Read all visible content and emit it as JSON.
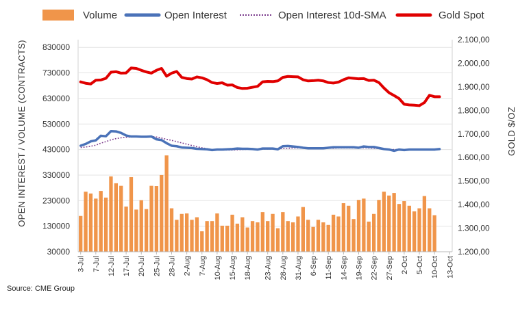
{
  "chart_data": {
    "type": "bar+line",
    "source": "Source: CME Group",
    "legend": [
      {
        "name": "Volume",
        "type": "bar",
        "color": "#f0954a"
      },
      {
        "name": "Open Interest",
        "type": "line",
        "color": "#4a72b8"
      },
      {
        "name": "Open Interest 10d-SMA",
        "type": "dotted-line",
        "color": "#7a3a8c"
      },
      {
        "name": "Gold Spot",
        "type": "line",
        "color": "#e00000"
      }
    ],
    "y_left": {
      "label": "OPEN INTEREST / VOLUME (CONTRACTS)",
      "range": [
        30000,
        860000
      ],
      "ticks": [
        "30000",
        "130000",
        "230000",
        "330000",
        "430000",
        "530000",
        "630000",
        "730000",
        "830000"
      ],
      "tick_values": [
        30000,
        130000,
        230000,
        330000,
        430000,
        530000,
        630000,
        730000,
        830000
      ]
    },
    "y_right": {
      "label": "GOLD $/OZ",
      "range": [
        1200,
        2100
      ],
      "ticks": [
        "1.200,00",
        "1.300,00",
        "1.400,00",
        "1.500,00",
        "1.600,00",
        "1.700,00",
        "1.800,00",
        "1.900,00",
        "2.000,00",
        "2.100,00"
      ],
      "tick_values": [
        1200,
        1300,
        1400,
        1500,
        1600,
        1700,
        1800,
        1900,
        2000,
        2100
      ]
    },
    "x_ticks": [
      "3-Jul",
      "7-Jul",
      "12-Jul",
      "17-Jul",
      "20-Jul",
      "25-Jul",
      "28-Jul",
      "2-Aug",
      "7-Aug",
      "10-Aug",
      "15-Aug",
      "18-Aug",
      "23-Aug",
      "28-Aug",
      "31-Aug",
      "6-Sep",
      "11-Sep",
      "14-Sep",
      "19-Sep",
      "22-Sep",
      "27-Sep",
      "2-Oct",
      "5-Oct",
      "10-Oct",
      "13-Oct"
    ],
    "n_slots": 74,
    "n_days": 72,
    "series": [
      {
        "name": "Volume",
        "values": [
          170000,
          265000,
          258000,
          238000,
          268000,
          242000,
          325000,
          298000,
          288000,
          207000,
          322000,
          195000,
          232000,
          197000,
          288000,
          287000,
          330000,
          407000,
          200000,
          155000,
          178000,
          180000,
          155000,
          165000,
          110000,
          150000,
          150000,
          180000,
          132000,
          132000,
          175000,
          140000,
          165000,
          125000,
          150000,
          145000,
          185000,
          150000,
          178000,
          122000,
          185000,
          150000,
          145000,
          168000,
          205000,
          155000,
          127000,
          155000,
          145000,
          135000,
          175000,
          168000,
          220000,
          210000,
          158000,
          233000,
          238000,
          148000,
          178000,
          233000,
          265000,
          250000,
          260000,
          217000,
          228000,
          210000,
          188000,
          200000,
          248000,
          200000,
          173000,
          0
        ]
      },
      {
        "name": "Open Interest",
        "values": [
          445000,
          452000,
          462000,
          466000,
          484000,
          482000,
          502000,
          501000,
          495000,
          485000,
          481000,
          481000,
          480000,
          480000,
          481000,
          470000,
          467000,
          455000,
          445000,
          443000,
          438000,
          437000,
          436000,
          433000,
          432000,
          431000,
          428000,
          430000,
          430000,
          431000,
          432000,
          434000,
          433000,
          433000,
          432000,
          430000,
          434000,
          434000,
          434000,
          431000,
          443000,
          444000,
          442000,
          440000,
          437000,
          435000,
          435000,
          435000,
          435000,
          437000,
          439000,
          439000,
          439000,
          439000,
          439000,
          437000,
          442000,
          440000,
          440000,
          436000,
          432000,
          430000,
          425000,
          430000,
          428000,
          430000,
          430000,
          430000,
          430000,
          430000,
          430000,
          432000
        ]
      },
      {
        "name": "Open Interest 10d-SMA",
        "values": [
          438000,
          440000,
          443000,
          447000,
          455000,
          461000,
          468000,
          473000,
          476000,
          478000,
          479000,
          480000,
          481000,
          482000,
          481000,
          479000,
          475000,
          470000,
          466000,
          461000,
          456000,
          451000,
          446000,
          441000,
          437000,
          433000,
          430000,
          429000,
          428000,
          428000,
          428000,
          429000,
          430000,
          431000,
          431000,
          431000,
          432000,
          432000,
          432000,
          433000,
          434000,
          435000,
          436000,
          436000,
          436000,
          436000,
          436000,
          435000,
          435000,
          435000,
          435000,
          436000,
          436000,
          436000,
          436000,
          436000,
          437000,
          436000,
          435000,
          434000,
          432000,
          431000,
          430000,
          430000,
          429000,
          429000,
          429000,
          429000,
          429000,
          429000,
          429000,
          430000
        ]
      },
      {
        "name": "Gold Spot",
        "values": [
          1921,
          1915,
          1912,
          1928,
          1929,
          1936,
          1962,
          1964,
          1958,
          1959,
          1980,
          1978,
          1970,
          1963,
          1958,
          1970,
          1978,
          1945,
          1958,
          1965,
          1940,
          1935,
          1933,
          1942,
          1938,
          1930,
          1918,
          1914,
          1917,
          1907,
          1908,
          1897,
          1893,
          1894,
          1898,
          1902,
          1921,
          1923,
          1922,
          1925,
          1940,
          1944,
          1943,
          1942,
          1930,
          1925,
          1926,
          1928,
          1925,
          1918,
          1916,
          1920,
          1930,
          1938,
          1936,
          1934,
          1935,
          1927,
          1928,
          1918,
          1895,
          1875,
          1863,
          1850,
          1826,
          1823,
          1822,
          1820,
          1833,
          1864,
          1858,
          1858
        ]
      }
    ]
  }
}
